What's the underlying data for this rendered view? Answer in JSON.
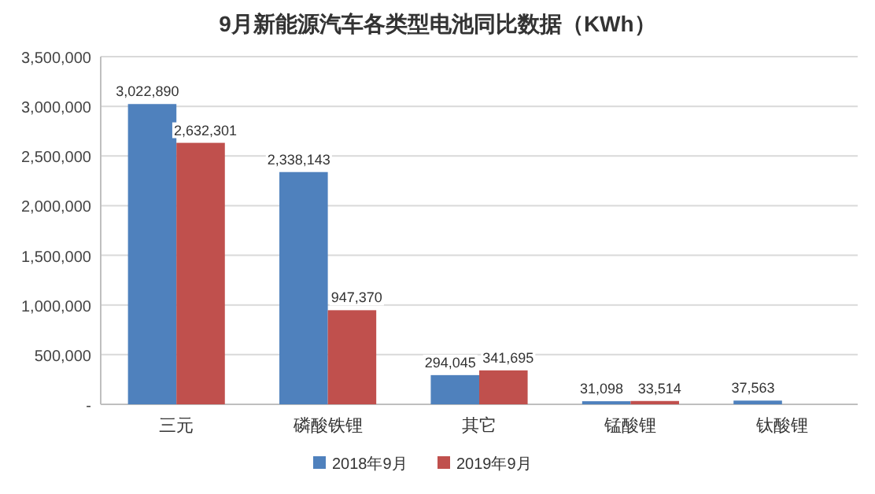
{
  "chart_data": {
    "type": "bar",
    "title": "9月新能源汽车各类型电池同比数据（KWh）",
    "categories": [
      "三元",
      "磷酸铁锂",
      "其它",
      "锰酸锂",
      "钛酸锂"
    ],
    "series": [
      {
        "name": "2018年9月",
        "color": "#4f81bd",
        "values": [
          3022890,
          2338143,
          294045,
          31098,
          37563
        ],
        "value_labels": [
          "3,022,890",
          "2,338,143",
          "294,045",
          "31,098",
          "37,563"
        ]
      },
      {
        "name": "2019年9月",
        "color": "#c0504d",
        "values": [
          2632301,
          947370,
          341695,
          33514,
          null
        ],
        "value_labels": [
          "2,632,301",
          "947,370",
          "341,695",
          "33,514",
          null
        ]
      }
    ],
    "ylim": [
      0,
      3500000
    ],
    "yticks": [
      {
        "value": 0,
        "label": "-"
      },
      {
        "value": 500000,
        "label": "500,000"
      },
      {
        "value": 1000000,
        "label": "1,000,000"
      },
      {
        "value": 1500000,
        "label": "1,500,000"
      },
      {
        "value": 2000000,
        "label": "2,000,000"
      },
      {
        "value": 2500000,
        "label": "2,500,000"
      },
      {
        "value": 3000000,
        "label": "3,000,000"
      },
      {
        "value": 3500000,
        "label": "3,500,000"
      }
    ],
    "grid": "y",
    "legend": "bottom"
  }
}
